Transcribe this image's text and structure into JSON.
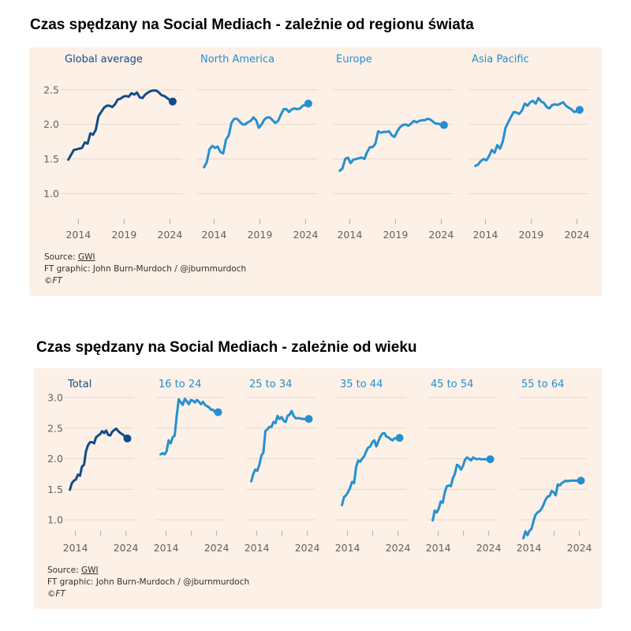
{
  "colors": {
    "background_panel": "#fdf0e6",
    "gridline": "#e6d9ce",
    "tick": "#b3a9a0",
    "dark_blue": "#0f4c8a",
    "light_blue": "#2490d0",
    "tick_label": "#66605c"
  },
  "chart_data": [
    {
      "type": "line",
      "title": "Czas spędzany na Social Mediach - zależnie od regionu świata",
      "xlabel": "",
      "ylabel": "",
      "ylim": [
        0.8,
        2.6
      ],
      "yticks": [
        1.0,
        1.5,
        2.0,
        2.5
      ],
      "ytick_labels": [
        "1.0",
        "1.5",
        "2.0",
        "2.5"
      ],
      "xlim": [
        2012.5,
        2025
      ],
      "xticks": [
        2014,
        2019,
        2024
      ],
      "xtick_labels": [
        "2014",
        "2019",
        "2024"
      ],
      "grid": true,
      "legend": "none (facet titles)",
      "facets": [
        {
          "name": "Global average",
          "color": "dark_blue",
          "x": [
            2012.9,
            2013.2,
            2013.5,
            2013.8,
            2014.1,
            2014.4,
            2014.7,
            2015.0,
            2015.3,
            2015.6,
            2015.9,
            2016.2,
            2016.5,
            2016.8,
            2017.1,
            2017.4,
            2017.7,
            2018.0,
            2018.3,
            2018.6,
            2018.9,
            2019.2,
            2019.5,
            2019.8,
            2020.1,
            2020.4,
            2020.7,
            2021.0,
            2021.3,
            2021.6,
            2021.9,
            2022.2,
            2022.5,
            2022.8,
            2023.1,
            2023.4,
            2023.7,
            2024.0,
            2024.3
          ],
          "y": [
            1.49,
            1.56,
            1.63,
            1.64,
            1.65,
            1.66,
            1.74,
            1.72,
            1.87,
            1.85,
            1.92,
            2.12,
            2.18,
            2.24,
            2.27,
            2.27,
            2.25,
            2.29,
            2.36,
            2.37,
            2.4,
            2.41,
            2.4,
            2.45,
            2.43,
            2.46,
            2.39,
            2.38,
            2.43,
            2.46,
            2.48,
            2.49,
            2.49,
            2.46,
            2.42,
            2.41,
            2.38,
            2.35,
            2.33
          ],
          "end_value": 2.33
        },
        {
          "name": "North America",
          "color": "light_blue",
          "x": [
            2012.9,
            2013.2,
            2013.5,
            2013.8,
            2014.1,
            2014.4,
            2014.7,
            2015.0,
            2015.3,
            2015.6,
            2015.9,
            2016.2,
            2016.5,
            2016.8,
            2017.1,
            2017.4,
            2017.7,
            2018.0,
            2018.3,
            2018.6,
            2018.9,
            2019.2,
            2019.5,
            2019.8,
            2020.1,
            2020.4,
            2020.7,
            2021.0,
            2021.3,
            2021.6,
            2021.9,
            2022.2,
            2022.5,
            2022.8,
            2023.1,
            2023.4,
            2023.7,
            2024.0,
            2024.3
          ],
          "y": [
            1.38,
            1.45,
            1.64,
            1.69,
            1.66,
            1.68,
            1.6,
            1.58,
            1.78,
            1.84,
            2.02,
            2.08,
            2.08,
            2.04,
            2.0,
            2.0,
            2.03,
            2.05,
            2.1,
            2.06,
            1.95,
            2.0,
            2.07,
            2.1,
            2.1,
            2.06,
            2.02,
            2.05,
            2.14,
            2.22,
            2.22,
            2.18,
            2.22,
            2.23,
            2.22,
            2.23,
            2.27,
            2.28,
            2.3
          ],
          "end_value": 2.3
        },
        {
          "name": "Europe",
          "color": "light_blue",
          "x": [
            2012.9,
            2013.2,
            2013.5,
            2013.8,
            2014.1,
            2014.4,
            2014.7,
            2015.0,
            2015.3,
            2015.6,
            2015.9,
            2016.2,
            2016.5,
            2016.8,
            2017.1,
            2017.4,
            2017.7,
            2018.0,
            2018.3,
            2018.6,
            2018.9,
            2019.2,
            2019.5,
            2019.8,
            2020.1,
            2020.4,
            2020.7,
            2021.0,
            2021.3,
            2021.6,
            2021.9,
            2022.2,
            2022.5,
            2022.8,
            2023.1,
            2023.4,
            2023.7,
            2024.0,
            2024.3
          ],
          "y": [
            1.33,
            1.36,
            1.5,
            1.52,
            1.44,
            1.49,
            1.5,
            1.51,
            1.52,
            1.5,
            1.6,
            1.67,
            1.67,
            1.72,
            1.9,
            1.88,
            1.89,
            1.89,
            1.9,
            1.84,
            1.82,
            1.9,
            1.96,
            1.99,
            2.0,
            1.98,
            2.01,
            2.05,
            2.03,
            2.05,
            2.06,
            2.06,
            2.08,
            2.07,
            2.04,
            2.01,
            2.01,
            1.99,
            1.99
          ],
          "end_value": 1.99
        },
        {
          "name": "Asia Pacific",
          "color": "light_blue",
          "x": [
            2012.9,
            2013.2,
            2013.5,
            2013.8,
            2014.1,
            2014.4,
            2014.7,
            2015.0,
            2015.3,
            2015.6,
            2015.9,
            2016.2,
            2016.5,
            2016.8,
            2017.1,
            2017.4,
            2017.7,
            2018.0,
            2018.3,
            2018.6,
            2018.9,
            2019.2,
            2019.5,
            2019.8,
            2020.1,
            2020.4,
            2020.7,
            2021.0,
            2021.3,
            2021.6,
            2021.9,
            2022.2,
            2022.5,
            2022.8,
            2023.1,
            2023.4,
            2023.7,
            2024.0,
            2024.3
          ],
          "y": [
            1.4,
            1.42,
            1.47,
            1.5,
            1.48,
            1.54,
            1.63,
            1.59,
            1.7,
            1.65,
            1.75,
            1.95,
            2.03,
            2.11,
            2.18,
            2.17,
            2.15,
            2.2,
            2.3,
            2.27,
            2.32,
            2.34,
            2.3,
            2.38,
            2.33,
            2.31,
            2.25,
            2.23,
            2.28,
            2.29,
            2.28,
            2.3,
            2.32,
            2.27,
            2.24,
            2.22,
            2.18,
            2.19,
            2.21
          ],
          "end_value": 2.21
        }
      ]
    },
    {
      "type": "line",
      "title": "Czas spędzany na Social Mediach - zależnie od wieku",
      "xlabel": "",
      "ylabel": "",
      "ylim": [
        0.7,
        3.05
      ],
      "yticks": [
        1.0,
        1.5,
        2.0,
        2.5,
        3.0
      ],
      "ytick_labels": [
        "1.0",
        "1.5",
        "2.0",
        "2.5",
        "3.0"
      ],
      "xlim": [
        2012.5,
        2025
      ],
      "xticks": [
        2014,
        2019,
        2024
      ],
      "xtick_labels": [
        "2014",
        "",
        "2024"
      ],
      "grid": true,
      "legend": "none (facet titles)",
      "facets": [
        {
          "name": "Total",
          "color": "dark_blue",
          "x": [
            2012.9,
            2013.3,
            2013.7,
            2014.1,
            2014.5,
            2014.9,
            2015.3,
            2015.7,
            2016.1,
            2016.5,
            2016.9,
            2017.3,
            2017.7,
            2018.1,
            2018.5,
            2018.9,
            2019.3,
            2019.7,
            2020.1,
            2020.5,
            2020.9,
            2021.3,
            2021.7,
            2022.1,
            2022.5,
            2022.9,
            2023.3,
            2023.7,
            2024.0,
            2024.3
          ],
          "y": [
            1.49,
            1.6,
            1.64,
            1.66,
            1.74,
            1.72,
            1.87,
            1.9,
            2.12,
            2.22,
            2.27,
            2.27,
            2.25,
            2.35,
            2.38,
            2.4,
            2.45,
            2.42,
            2.46,
            2.39,
            2.38,
            2.44,
            2.47,
            2.49,
            2.45,
            2.42,
            2.4,
            2.37,
            2.35,
            2.33
          ],
          "end_value": 2.33
        },
        {
          "name": "16 to 24",
          "color": "light_blue",
          "x": [
            2012.9,
            2013.3,
            2013.7,
            2014.1,
            2014.5,
            2014.9,
            2015.3,
            2015.7,
            2016.1,
            2016.5,
            2016.9,
            2017.3,
            2017.7,
            2018.1,
            2018.5,
            2018.9,
            2019.3,
            2019.7,
            2020.1,
            2020.5,
            2020.9,
            2021.3,
            2021.7,
            2022.1,
            2022.5,
            2022.9,
            2023.3,
            2023.7,
            2024.0,
            2024.3
          ],
          "y": [
            2.07,
            2.09,
            2.07,
            2.12,
            2.3,
            2.25,
            2.35,
            2.38,
            2.7,
            2.97,
            2.92,
            2.88,
            2.98,
            2.94,
            2.89,
            2.96,
            2.95,
            2.92,
            2.96,
            2.93,
            2.89,
            2.93,
            2.88,
            2.86,
            2.84,
            2.8,
            2.8,
            2.76,
            2.75,
            2.76
          ],
          "end_value": 2.76
        },
        {
          "name": "25 to 34",
          "color": "light_blue",
          "x": [
            2012.9,
            2013.3,
            2013.7,
            2014.1,
            2014.5,
            2014.9,
            2015.3,
            2015.7,
            2016.1,
            2016.5,
            2016.9,
            2017.3,
            2017.7,
            2018.1,
            2018.5,
            2018.9,
            2019.3,
            2019.7,
            2020.1,
            2020.5,
            2020.9,
            2021.3,
            2021.7,
            2022.1,
            2022.5,
            2022.9,
            2023.3,
            2023.7,
            2024.0,
            2024.3
          ],
          "y": [
            1.63,
            1.75,
            1.82,
            1.8,
            1.9,
            2.05,
            2.1,
            2.45,
            2.48,
            2.52,
            2.52,
            2.6,
            2.58,
            2.7,
            2.65,
            2.68,
            2.62,
            2.6,
            2.7,
            2.72,
            2.78,
            2.7,
            2.66,
            2.66,
            2.66,
            2.65,
            2.65,
            2.65,
            2.65,
            2.65
          ],
          "end_value": 2.65
        },
        {
          "name": "35 to 44",
          "color": "light_blue",
          "x": [
            2012.9,
            2013.3,
            2013.7,
            2014.1,
            2014.5,
            2014.9,
            2015.3,
            2015.7,
            2016.1,
            2016.5,
            2016.9,
            2017.3,
            2017.7,
            2018.1,
            2018.5,
            2018.9,
            2019.3,
            2019.7,
            2020.1,
            2020.5,
            2020.9,
            2021.3,
            2021.7,
            2022.1,
            2022.5,
            2022.9,
            2023.3,
            2023.7,
            2024.0,
            2024.3
          ],
          "y": [
            1.24,
            1.37,
            1.4,
            1.45,
            1.52,
            1.62,
            1.6,
            1.86,
            1.97,
            1.95,
            2.0,
            2.04,
            2.12,
            2.18,
            2.2,
            2.27,
            2.3,
            2.2,
            2.28,
            2.36,
            2.41,
            2.42,
            2.36,
            2.35,
            2.32,
            2.3,
            2.33,
            2.34,
            2.34,
            2.34
          ],
          "end_value": 2.34
        },
        {
          "name": "45 to 54",
          "color": "light_blue",
          "x": [
            2012.9,
            2013.3,
            2013.7,
            2014.1,
            2014.5,
            2014.9,
            2015.3,
            2015.7,
            2016.1,
            2016.5,
            2016.9,
            2017.3,
            2017.7,
            2018.1,
            2018.5,
            2018.9,
            2019.3,
            2019.7,
            2020.1,
            2020.5,
            2020.9,
            2021.3,
            2021.7,
            2022.1,
            2022.5,
            2022.9,
            2023.3,
            2023.7,
            2024.0,
            2024.3
          ],
          "y": [
            0.99,
            1.15,
            1.12,
            1.18,
            1.3,
            1.28,
            1.45,
            1.55,
            1.56,
            1.55,
            1.68,
            1.75,
            1.9,
            1.88,
            1.82,
            1.88,
            1.98,
            2.02,
            2.0,
            1.97,
            2.02,
            2.0,
            1.99,
            2.0,
            1.99,
            1.99,
            1.99,
            1.99,
            1.99,
            1.99
          ],
          "end_value": 1.99
        },
        {
          "name": "55 to 64",
          "color": "light_blue",
          "x": [
            2012.9,
            2013.3,
            2013.7,
            2014.1,
            2014.5,
            2014.9,
            2015.3,
            2015.7,
            2016.1,
            2016.5,
            2016.9,
            2017.3,
            2017.7,
            2018.1,
            2018.5,
            2018.9,
            2019.3,
            2019.7,
            2020.1,
            2020.5,
            2020.9,
            2021.3,
            2021.7,
            2022.1,
            2022.5,
            2022.9,
            2023.3,
            2023.7,
            2024.0,
            2024.3
          ],
          "y": [
            0.7,
            0.81,
            0.75,
            0.82,
            0.85,
            0.98,
            1.08,
            1.12,
            1.14,
            1.18,
            1.25,
            1.33,
            1.38,
            1.39,
            1.47,
            1.45,
            1.4,
            1.58,
            1.56,
            1.6,
            1.62,
            1.64,
            1.63,
            1.64,
            1.64,
            1.64,
            1.64,
            1.64,
            1.64,
            1.64
          ],
          "end_value": 1.64
        }
      ]
    }
  ],
  "footer": {
    "source_label": "Source: ",
    "source_link": "GWI",
    "credit": "FT graphic: John Burn-Murdoch / @jburnmurdoch",
    "copyright": "©FT"
  }
}
